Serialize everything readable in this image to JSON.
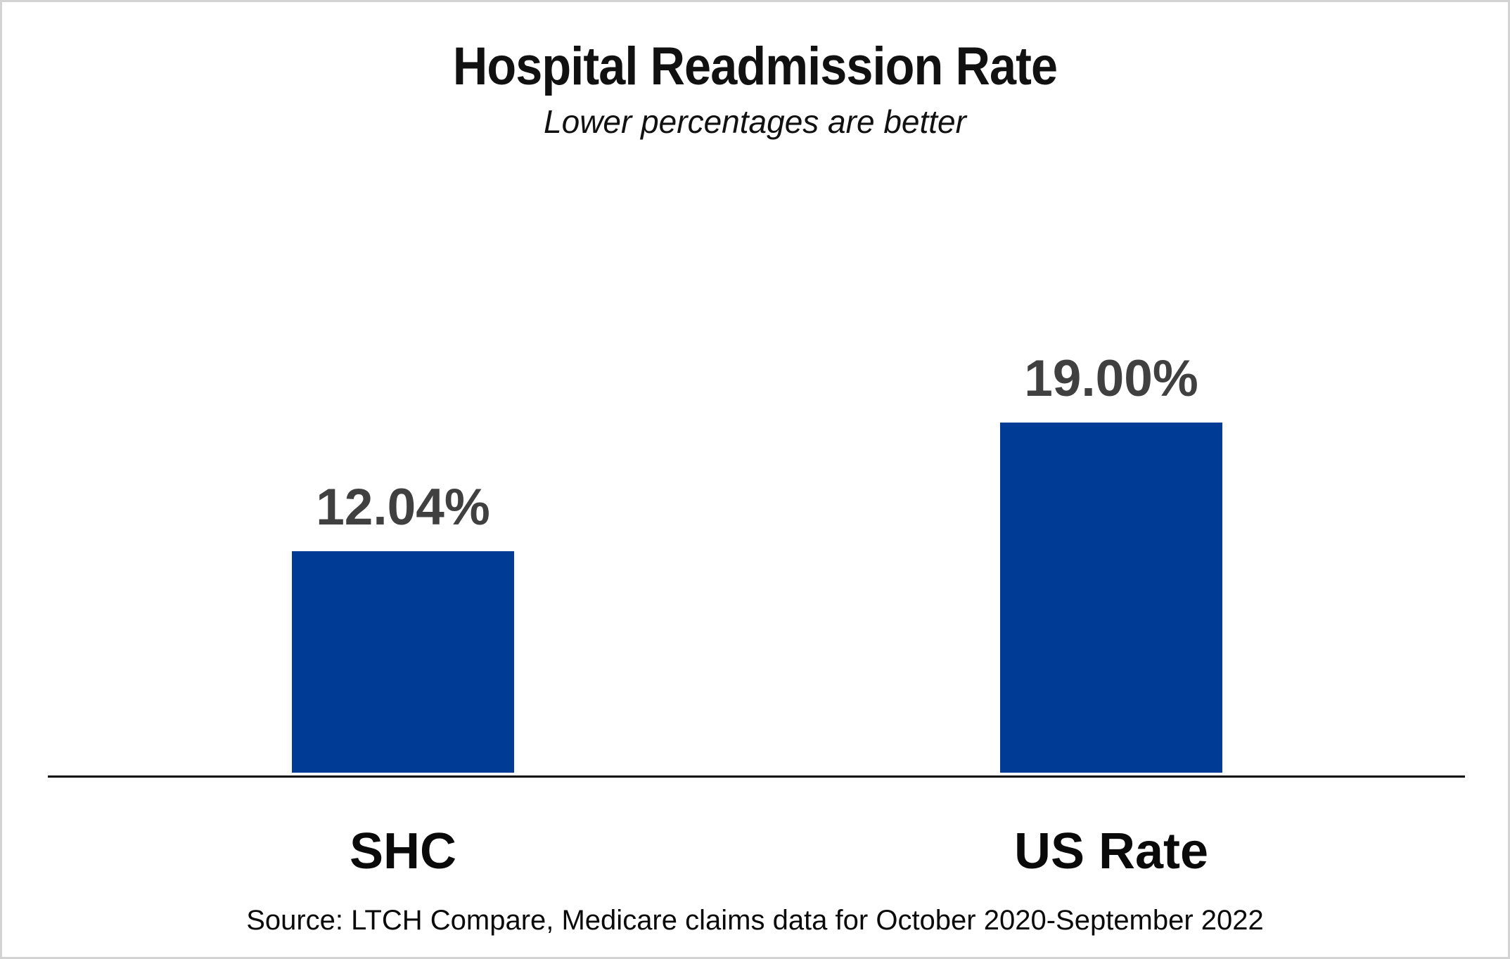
{
  "frame": {
    "background": "#ffffff",
    "border_color": "#d3d3d3"
  },
  "chart_data": {
    "type": "bar",
    "title": "Hospital Readmission Rate",
    "subtitle": "Lower percentages are better",
    "categories": [
      "SHC",
      "US Rate"
    ],
    "values": [
      12.04,
      19.0
    ],
    "value_labels": [
      "12.04%",
      "19.00%"
    ],
    "series_unit": "percent",
    "bar_color": "#003c96",
    "value_label_color": "#404040",
    "axis_color": "#000000",
    "grid": false,
    "y_axis_visible": false,
    "legend_position": "none",
    "source_note": "Source: LTCH Compare, Medicare claims data for October 2020-September 2022"
  }
}
